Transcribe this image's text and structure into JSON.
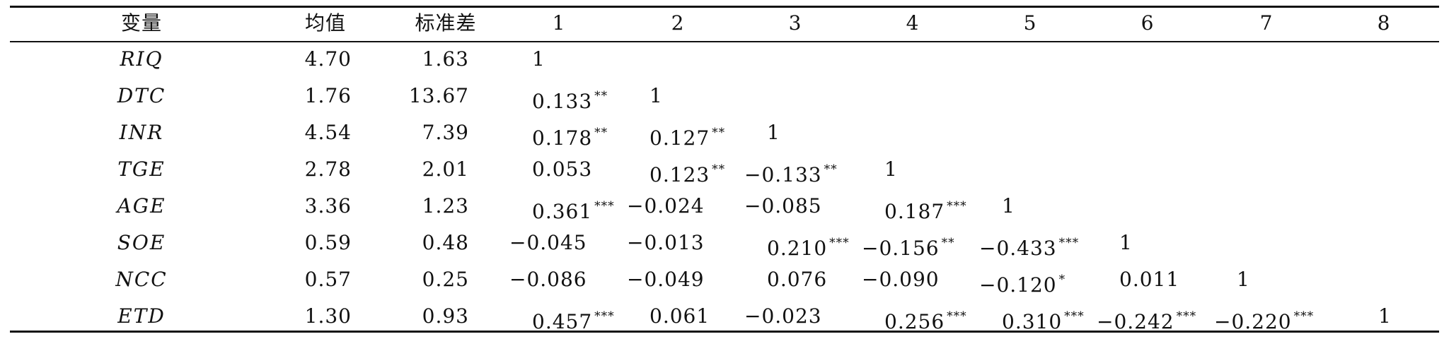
{
  "table": {
    "headers": [
      "变量",
      "均值",
      "标准差",
      "1",
      "2",
      "3",
      "4",
      "5",
      "6",
      "7",
      "8"
    ],
    "rows": [
      {
        "var": "RIQ",
        "mean": "4.70",
        "sd": "1.63",
        "cells": [
          [
            "1",
            ""
          ]
        ]
      },
      {
        "var": "DTC",
        "mean": "1.76",
        "sd": "13.67",
        "cells": [
          [
            "0.133",
            "**"
          ],
          [
            "1",
            ""
          ]
        ]
      },
      {
        "var": "INR",
        "mean": "4.54",
        "sd": "7.39",
        "cells": [
          [
            "0.178",
            "**"
          ],
          [
            "0.127",
            "**"
          ],
          [
            "1",
            ""
          ]
        ]
      },
      {
        "var": "TGE",
        "mean": "2.78",
        "sd": "2.01",
        "cells": [
          [
            "0.053",
            ""
          ],
          [
            "0.123",
            "**"
          ],
          [
            "−0.133",
            "**"
          ],
          [
            "1",
            ""
          ]
        ]
      },
      {
        "var": "AGE",
        "mean": "3.36",
        "sd": "1.23",
        "cells": [
          [
            "0.361",
            "***"
          ],
          [
            "−0.024",
            ""
          ],
          [
            "−0.085",
            ""
          ],
          [
            "0.187",
            "***"
          ],
          [
            "1",
            ""
          ]
        ]
      },
      {
        "var": "SOE",
        "mean": "0.59",
        "sd": "0.48",
        "cells": [
          [
            "−0.045",
            ""
          ],
          [
            "−0.013",
            ""
          ],
          [
            "0.210",
            "***"
          ],
          [
            "−0.156",
            "**"
          ],
          [
            "−0.433",
            "***"
          ],
          [
            "1",
            ""
          ]
        ]
      },
      {
        "var": "NCC",
        "mean": "0.57",
        "sd": "0.25",
        "cells": [
          [
            "−0.086",
            ""
          ],
          [
            "−0.049",
            ""
          ],
          [
            "0.076",
            ""
          ],
          [
            "−0.090",
            ""
          ],
          [
            "−0.120",
            "*"
          ],
          [
            "0.011",
            ""
          ],
          [
            "1",
            ""
          ]
        ]
      },
      {
        "var": "ETD",
        "mean": "1.30",
        "sd": "0.93",
        "cells": [
          [
            "0.457",
            "***"
          ],
          [
            "0.061",
            ""
          ],
          [
            "−0.023",
            ""
          ],
          [
            "0.256",
            "***"
          ],
          [
            "0.310",
            "***"
          ],
          [
            "−0.242",
            "***"
          ],
          [
            "−0.220",
            "***"
          ],
          [
            "1",
            ""
          ]
        ]
      }
    ]
  }
}
